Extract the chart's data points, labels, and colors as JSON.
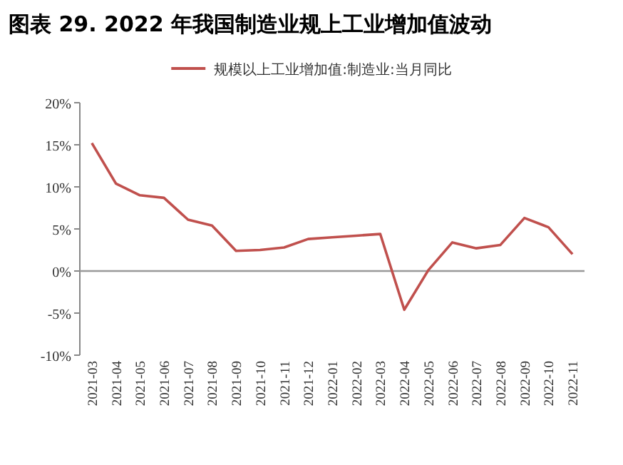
{
  "chart_data": {
    "type": "line",
    "title": "图表 29. 2022 年我国制造业规上工业增加值波动",
    "categories": [
      "2021-03",
      "2021-04",
      "2021-05",
      "2021-06",
      "2021-07",
      "2021-08",
      "2021-09",
      "2021-10",
      "2021-11",
      "2021-12",
      "2022-01",
      "2022-02",
      "2022-03",
      "2022-04",
      "2022-05",
      "2022-06",
      "2022-07",
      "2022-08",
      "2022-09",
      "2022-10",
      "2022-11"
    ],
    "series": [
      {
        "name": "规模以上工业增加值:制造业:当月同比",
        "color": "#c0504d",
        "values": [
          15.2,
          10.4,
          9.0,
          8.7,
          6.1,
          5.4,
          2.4,
          2.5,
          2.8,
          3.8,
          4.0,
          4.2,
          4.4,
          -4.6,
          0.1,
          3.4,
          2.7,
          3.1,
          6.3,
          5.2,
          2.0
        ]
      }
    ],
    "ylim": [
      -10,
      20
    ],
    "yticks": [
      {
        "value": -10,
        "label": "-10%"
      },
      {
        "value": -5,
        "label": "-5%"
      },
      {
        "value": 0,
        "label": "0%"
      },
      {
        "value": 5,
        "label": "5%"
      },
      {
        "value": 10,
        "label": "10%"
      },
      {
        "value": 15,
        "label": "15%"
      },
      {
        "value": 20,
        "label": "20%"
      }
    ],
    "legend": "top",
    "marker": "none",
    "line_style": "solid"
  }
}
